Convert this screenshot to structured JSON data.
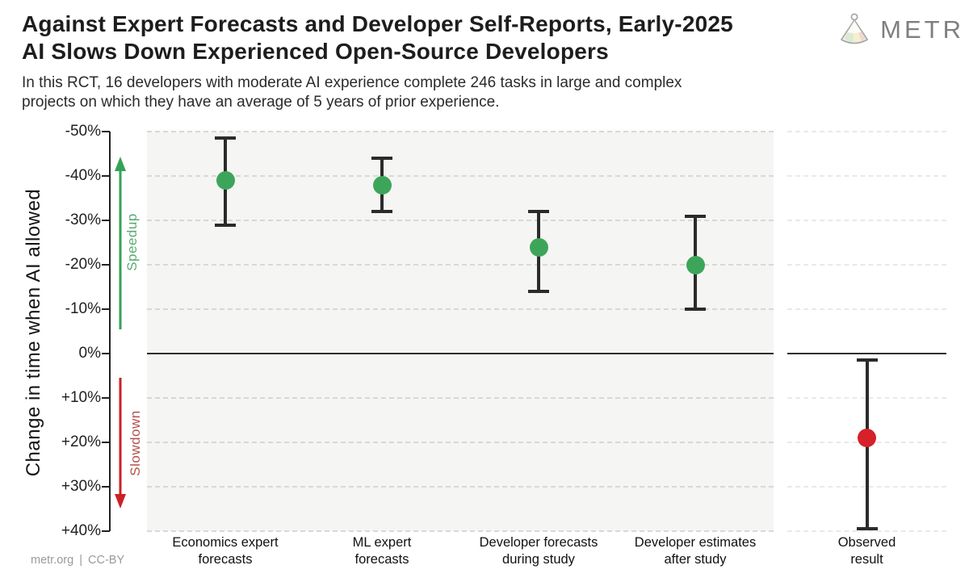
{
  "branding": {
    "logo_text": "METR",
    "logo_icon": "fan-plumb-icon"
  },
  "footer": {
    "credit": "metr.org | CC-BY"
  },
  "chart_data": {
    "type": "scatter",
    "title_lines": [
      "Against Expert Forecasts and Developer Self-Reports, Early-2025",
      "AI Slows Down Experienced Open-Source Developers"
    ],
    "subtitle_lines": [
      "In this RCT, 16 developers with moderate AI experience complete 246 tasks in large and complex",
      "projects on which they have an average of 5 years of prior experience."
    ],
    "ylabel": "Change in time when AI allowed",
    "y_unit": "%",
    "ylim": [
      -50,
      40
    ],
    "yticks": [
      "-50%",
      "-40%",
      "-30%",
      "-20%",
      "-10%",
      "0%",
      "+10%",
      "+20%",
      "+30%",
      "+40%"
    ],
    "ytick_values": [
      -50,
      -40,
      -30,
      -20,
      -10,
      0,
      10,
      20,
      30,
      40
    ],
    "grid": "horizontal-dashed",
    "zero_line": 0,
    "legend": "none",
    "points": [
      {
        "label": "Economics expert\nforecasts",
        "panel": "main",
        "mean": -39,
        "ci_low": -48.5,
        "ci_high": -29,
        "color": "#3da55a"
      },
      {
        "label": "ML expert\nforecasts",
        "panel": "main",
        "mean": -38,
        "ci_low": -44,
        "ci_high": -32,
        "color": "#3da55a"
      },
      {
        "label": "Developer forecasts\nduring study",
        "panel": "main",
        "mean": -24,
        "ci_low": -32,
        "ci_high": -14,
        "color": "#3da55a"
      },
      {
        "label": "Developer estimates\nafter study",
        "panel": "main",
        "mean": -20,
        "ci_low": -31,
        "ci_high": -10,
        "color": "#3da55a"
      },
      {
        "label": "Observed\nresult",
        "panel": "observed",
        "mean": 19,
        "ci_low": 1.5,
        "ci_high": 39.5,
        "color": "#d6202a"
      }
    ],
    "annotations": [
      {
        "text": "Speedup",
        "direction": "up",
        "arrow_color": "#35a257",
        "text_color": "#58ab74"
      },
      {
        "text": "Slowdown",
        "direction": "down",
        "arrow_color": "#cc2025",
        "text_color": "#b5504a"
      }
    ],
    "colors": {
      "point_green": "#3da55a",
      "point_red": "#d6202a",
      "errorbar": "#2b2b2b",
      "panel_bg": "#f5f5f3"
    }
  }
}
